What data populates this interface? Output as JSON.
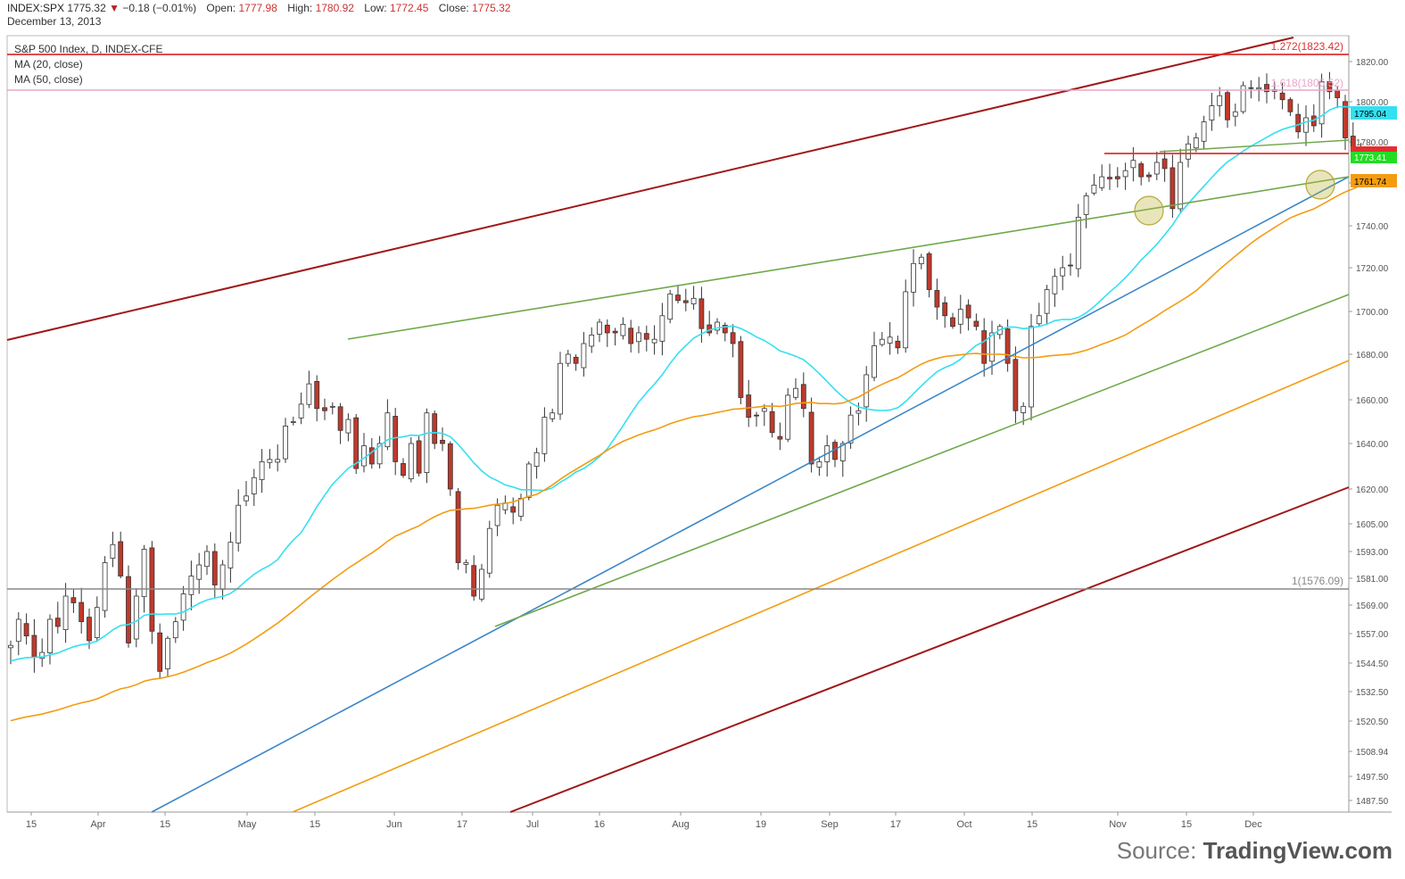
{
  "header": {
    "symbol": "INDEX:SPX",
    "last": "1775.32",
    "change_icon": "down-triangle-icon",
    "change": "−0.18 (−0.01%)",
    "open_label": "Open:",
    "open": "1777.98",
    "high_label": "High:",
    "high": "1780.92",
    "low_label": "Low:",
    "low": "1772.45",
    "close_label": "Close:",
    "close": "1775.32",
    "date": "December 13, 2013"
  },
  "legend": {
    "title": "S&P 500 Index, D, INDEX-CFE",
    "ma20": "MA (20, close)",
    "ma50": "MA (50, close)"
  },
  "source": {
    "prefix": "Source:",
    "brand": "TradingView.com"
  },
  "colors": {
    "up_candle": "#ffffff",
    "down_candle": "#c0392b",
    "ma20": "#33e0f0",
    "ma50": "#f39c12",
    "channel_dark_red": "#a01818",
    "support_blue": "#3d86c8",
    "trend_green": "#6ea84a",
    "fib_red": "#e03030",
    "fib_pink": "#e8a5c8",
    "gray_level": "#888888"
  },
  "chart_data": {
    "type": "candlestick",
    "x_axis_labels": [
      "15",
      "Apr",
      "15",
      "May",
      "15",
      "Jun",
      "17",
      "Jul",
      "16",
      "Aug",
      "19",
      "Sep",
      "17",
      "Oct",
      "15",
      "Nov",
      "15",
      "Dec"
    ],
    "y_axis_ticks": [
      1487.5,
      1497.5,
      1508.94,
      1520.5,
      1532.5,
      1544.5,
      1557.0,
      1569.0,
      1581.0,
      1593.0,
      1605.0,
      1620.0,
      1640.0,
      1660.0,
      1680.0,
      1700.0,
      1720.0,
      1740.0,
      1760.0,
      1780.0,
      1800.0,
      1820.0
    ],
    "price_tags": [
      {
        "value": "1795.04",
        "price": 1795.04,
        "color": "#33e0f0"
      },
      {
        "value": "1773.41",
        "price": 1773.41,
        "color": "#22dd22"
      },
      {
        "value": "1761.74",
        "price": 1761.74,
        "color": "#f39c12"
      }
    ],
    "fib_levels": [
      {
        "label": "1.272(1823.42)",
        "price": 1823.42,
        "color": "#e03030"
      },
      {
        "label": "1.618(1805.52)",
        "price": 1805.52,
        "color": "#e8a5c8"
      },
      {
        "label": "1(1576.09)",
        "price": 1576.09,
        "color": "#888888"
      }
    ],
    "series": [
      {
        "name": "S&P 500 Index",
        "closes": [
          1552,
          1563,
          1556,
          1547,
          1549,
          1563,
          1560,
          1573,
          1570,
          1562,
          1554,
          1568,
          1588,
          1596,
          1582,
          1553,
          1573,
          1594,
          1558,
          1541,
          1555,
          1562,
          1574,
          1582,
          1587,
          1593,
          1578,
          1587,
          1597,
          1613,
          1617,
          1625,
          1632,
          1633,
          1633,
          1648,
          1650,
          1658,
          1667,
          1656,
          1655,
          1657,
          1646,
          1651,
          1629,
          1639,
          1631,
          1640,
          1654,
          1632,
          1626,
          1640,
          1627,
          1654,
          1640,
          1640,
          1620,
          1588,
          1588,
          1573,
          1585,
          1603,
          1613,
          1614,
          1610,
          1616,
          1631,
          1636,
          1652,
          1654,
          1676,
          1680,
          1676,
          1685,
          1689,
          1695,
          1690,
          1690,
          1694,
          1685,
          1690,
          1687,
          1687,
          1698,
          1708,
          1705,
          1704,
          1706,
          1692,
          1690,
          1695,
          1690,
          1685,
          1661,
          1652,
          1653,
          1656,
          1645,
          1642,
          1662,
          1665,
          1656,
          1631,
          1632,
          1639,
          1633,
          1640,
          1653,
          1655,
          1671,
          1684,
          1687,
          1688,
          1683,
          1709,
          1722,
          1725,
          1710,
          1702,
          1698,
          1693,
          1701,
          1697,
          1693,
          1676,
          1690,
          1693,
          1676,
          1655,
          1657,
          1693,
          1698,
          1710,
          1716,
          1720,
          1721,
          1744,
          1754,
          1759,
          1763,
          1762,
          1762,
          1766,
          1771,
          1763,
          1763,
          1770,
          1767,
          1748,
          1770,
          1779,
          1782,
          1790,
          1798,
          1803,
          1791,
          1795,
          1808,
          1807,
          1807,
          1805,
          1806,
          1801,
          1795,
          1785,
          1792,
          1788,
          1810,
          1805,
          1802,
          1782,
          1775,
          1775
        ]
      }
    ]
  }
}
